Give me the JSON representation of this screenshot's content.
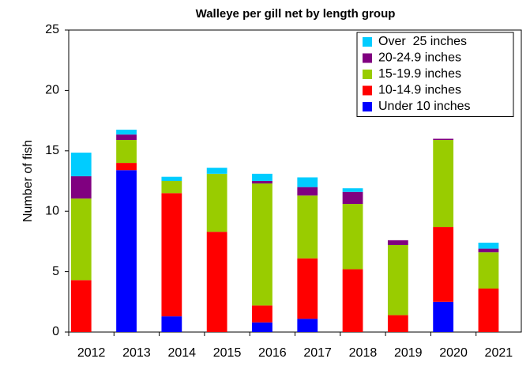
{
  "chart_data": {
    "type": "stacked_bar",
    "title": "Walleye per gill net by length group",
    "y_label": "Number of fish",
    "categories": [
      "2012",
      "2013",
      "2014",
      "2015",
      "2016",
      "2017",
      "2018",
      "2019",
      "2020",
      "2021"
    ],
    "series": [
      {
        "name": "Under 10 inches",
        "color": "#0000ff",
        "values": [
          0,
          13.4,
          1.3,
          0,
          0.8,
          1.1,
          0,
          0,
          2.5,
          0
        ]
      },
      {
        "name": "10-14.9 inches",
        "color": "#ff0000",
        "values": [
          4.3,
          0.6,
          10.2,
          8.3,
          1.4,
          5.0,
          5.2,
          1.4,
          6.2,
          3.6
        ]
      },
      {
        "name": "15-19.9 inches",
        "color": "#99cc00",
        "values": [
          6.75,
          1.9,
          1.0,
          4.8,
          10.1,
          5.2,
          5.4,
          5.8,
          7.2,
          3.0
        ]
      },
      {
        "name": "20-24.9 inches",
        "color": "#800080",
        "values": [
          1.85,
          0.45,
          0,
          0,
          0.2,
          0.7,
          1.0,
          0.4,
          0.1,
          0.3
        ]
      },
      {
        "name": "Over  25 inches",
        "color": "#00ccff",
        "values": [
          1.95,
          0.4,
          0.35,
          0.5,
          0.6,
          0.8,
          0.3,
          0,
          0,
          0.5
        ]
      }
    ],
    "ylim": [
      0,
      25
    ],
    "yticks": [
      0,
      5,
      10,
      15,
      20,
      25
    ],
    "legend": "top-right"
  }
}
